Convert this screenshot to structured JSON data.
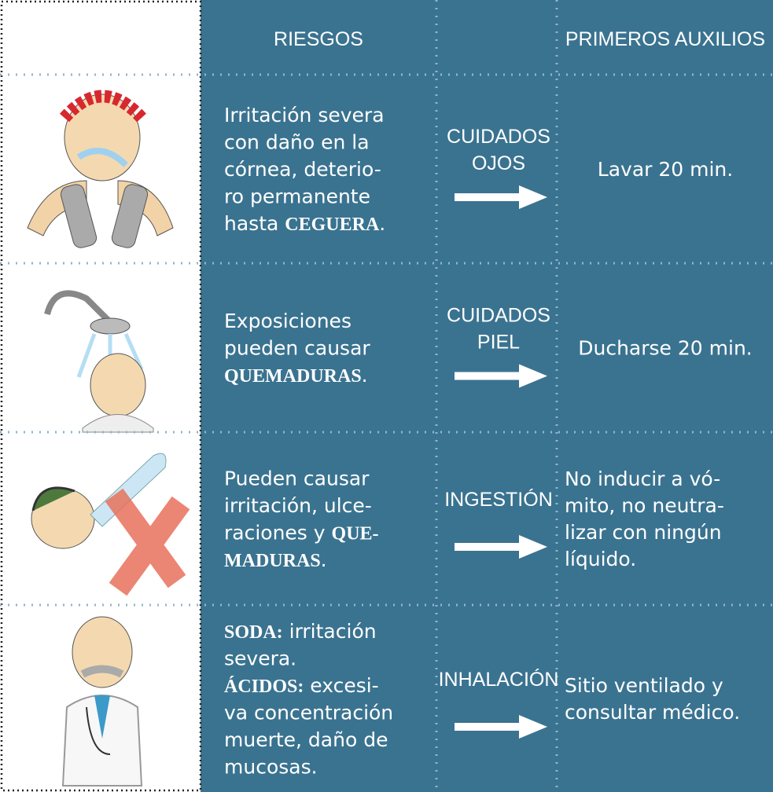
{
  "header": {
    "risks": "RIESGOS",
    "first_aid": "PRIMEROS AUXILIOS"
  },
  "rows": [
    {
      "risk": [
        [
          {
            "text": "Irritación severa"
          }
        ],
        [
          {
            "text": "con daño en la"
          }
        ],
        [
          {
            "text": "córnea, deterio-"
          }
        ],
        [
          {
            "text": "ro permanente"
          }
        ],
        [
          {
            "text": "hasta "
          },
          {
            "text": "CEGUERA",
            "bold": true
          },
          {
            "text": "."
          }
        ]
      ],
      "care": [
        "CUIDADOS",
        "OJOS"
      ],
      "aid": [
        "Lavar 20 min."
      ]
    },
    {
      "risk": [
        [
          {
            "text": "Exposiciones"
          }
        ],
        [
          {
            "text": "pueden causar"
          }
        ],
        [
          {
            "text": "QUEMADURAS",
            "bold": true
          },
          {
            "text": "."
          }
        ]
      ],
      "care": [
        "CUIDADOS",
        "PIEL"
      ],
      "aid": [
        "Ducharse 20 min."
      ]
    },
    {
      "risk": [
        [
          {
            "text": "Pueden causar"
          }
        ],
        [
          {
            "text": "irritación, ulce-"
          }
        ],
        [
          {
            "text": "raciones y "
          },
          {
            "text": "QUE-",
            "bold": true
          }
        ],
        [
          {
            "text": "MADURAS",
            "bold": true
          },
          {
            "text": "."
          }
        ]
      ],
      "care": [
        "INGESTIÓN"
      ],
      "aid": [
        "No inducir a vó-",
        "mito, no neutra-",
        "lizar con ningún",
        "líquido."
      ]
    },
    {
      "risk": [
        [
          {
            "text": "SODA:",
            "bold": true
          },
          {
            "text": " irritación"
          }
        ],
        [
          {
            "text": "severa."
          }
        ],
        [
          {
            "text": "ÁCIDOS:",
            "bold": true
          },
          {
            "text": " excesi-"
          }
        ],
        [
          {
            "text": "va concentración"
          }
        ],
        [
          {
            "text": "muerte, daño de"
          }
        ],
        [
          {
            "text": "mucosas."
          }
        ]
      ],
      "care": [
        "INHALACIÓN"
      ],
      "aid": [
        "Sitio ventilado y",
        "consultar médico."
      ]
    }
  ]
}
